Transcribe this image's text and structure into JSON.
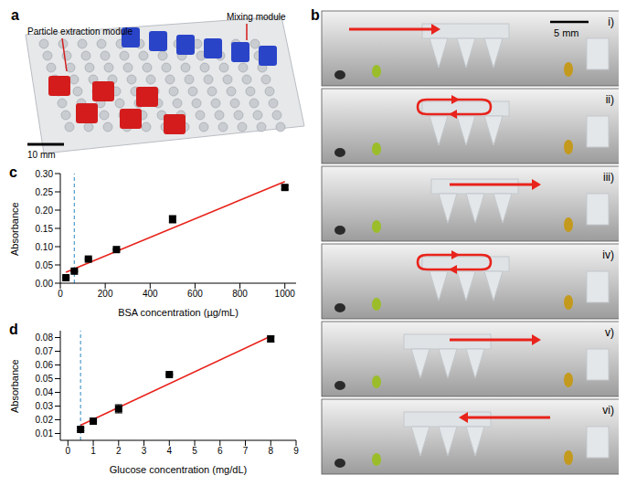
{
  "panels": {
    "a": {
      "label": "a",
      "annotations": [
        "Particle extraction module",
        "Mixing module"
      ],
      "scale_bar": "10 mm"
    },
    "b": {
      "label": "b",
      "scale_bar": "5 mm",
      "steps": [
        {
          "label": "i)",
          "arrow": "right"
        },
        {
          "label": "ii)",
          "arrow": "loop"
        },
        {
          "label": "iii)",
          "arrow": "right"
        },
        {
          "label": "iv)",
          "arrow": "loop"
        },
        {
          "label": "v)",
          "arrow": "right"
        },
        {
          "label": "vi)",
          "arrow": "left"
        }
      ]
    }
  },
  "chart_data": [
    {
      "panel": "c",
      "type": "scatter",
      "x_label": "BSA concentration (µg/mL)",
      "y_label": "Absorbance",
      "x": [
        25,
        62.5,
        125,
        250,
        500,
        1000
      ],
      "values": [
        0.015,
        0.033,
        0.066,
        0.092,
        0.175,
        0.262
      ],
      "errors": [
        0.002,
        0.002,
        0.002,
        0.002,
        0.01,
        0.005
      ],
      "color": "#000000",
      "marker": "square",
      "fit": {
        "x": [
          25,
          1000
        ],
        "values": [
          0.03,
          0.278
        ],
        "color": "#e8231b"
      },
      "vline": {
        "x": 62.5,
        "color": "#5ba3d0",
        "line_style": "dashed"
      },
      "xlim": [
        0,
        1050
      ],
      "xticks": [
        0,
        200,
        400,
        600,
        800,
        1000
      ],
      "ylim": [
        0,
        0.3
      ],
      "yticks": [
        {
          "value": 0,
          "label": "0.00"
        },
        {
          "value": 0.05,
          "label": "0.05"
        },
        {
          "value": 0.1,
          "label": "0.10"
        },
        {
          "value": 0.15,
          "label": "0.15"
        },
        {
          "value": 0.2,
          "label": "0.20"
        },
        {
          "value": 0.25,
          "label": "0.25"
        },
        {
          "value": 0.3,
          "label": "0.30"
        }
      ]
    },
    {
      "panel": "d",
      "type": "scatter",
      "x_label": "Glucose concentration (mg/dL)",
      "y_label": "Absorbance",
      "x": [
        0.5,
        1,
        2,
        4,
        8
      ],
      "values": [
        0.013,
        0.019,
        0.028,
        0.053,
        0.079
      ],
      "errors": [
        0.001,
        0.0005,
        0.003,
        0.0005,
        0.002
      ],
      "color": "#000000",
      "marker": "square",
      "fit": {
        "x": [
          0.5,
          8
        ],
        "values": [
          0.016,
          0.081
        ],
        "color": "#e8231b"
      },
      "vline": {
        "x": 0.5,
        "color": "#5ba3d0",
        "line_style": "dashed"
      },
      "xlim": [
        -0.3,
        9
      ],
      "xticks": [
        0,
        1,
        2,
        3,
        4,
        5,
        6,
        7,
        8,
        9
      ],
      "ylim": [
        0.005,
        0.085
      ],
      "yticks": [
        0.01,
        0.02,
        0.03,
        0.04,
        0.05,
        0.06,
        0.07,
        0.08
      ]
    }
  ]
}
